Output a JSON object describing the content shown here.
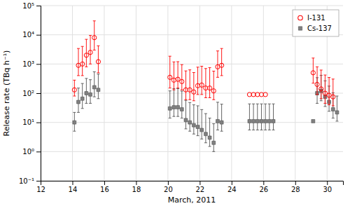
{
  "chart_data": {
    "type": "scatter",
    "xlabel": "March, 2011",
    "ylabel": "Release rate (TBq h⁻¹)",
    "log": "y",
    "grid": true,
    "legend": "upper-right",
    "xlim": [
      12,
      31
    ],
    "ylim": [
      0.1,
      100000
    ],
    "xticks": [
      12,
      14,
      16,
      18,
      20,
      22,
      24,
      26,
      28,
      30
    ],
    "yticks": [
      {
        "value": 0.1,
        "label": "10⁻¹"
      },
      {
        "value": 1,
        "label": "10⁰"
      },
      {
        "value": 10,
        "label": "10¹"
      },
      {
        "value": 100,
        "label": "10²"
      },
      {
        "value": 1000,
        "label": "10³"
      },
      {
        "value": 10000,
        "label": "10⁴"
      },
      {
        "value": 100000,
        "label": "10⁵"
      }
    ],
    "series": [
      {
        "name": "I-131",
        "color": "#FF0000",
        "marker": "open-circle",
        "x": [
          14.125,
          14.375,
          14.625,
          14.875,
          15.125,
          15.375,
          15.625,
          20.125,
          20.375,
          20.625,
          20.875,
          21.125,
          21.375,
          21.625,
          21.875,
          22.125,
          22.375,
          22.625,
          22.875,
          23.125,
          23.375,
          25.125,
          25.375,
          25.625,
          25.875,
          26.125,
          29.125,
          29.375,
          29.625,
          29.875,
          30.125,
          30.375
        ],
        "values": [
          130,
          900,
          1000,
          2000,
          2500,
          8000,
          1200,
          350,
          280,
          300,
          250,
          130,
          130,
          110,
          180,
          190,
          150,
          150,
          120,
          800,
          900,
          90,
          90,
          90,
          90,
          90,
          500,
          200,
          140,
          100,
          85,
          75
        ],
        "error_lo": [
          50,
          500,
          600,
          1200,
          1500,
          5000,
          700,
          200,
          150,
          150,
          120,
          70,
          70,
          55,
          90,
          100,
          80,
          80,
          60,
          450,
          500,
          0,
          0,
          0,
          0,
          0,
          280,
          110,
          75,
          55,
          45,
          38
        ],
        "error_hi": [
          150,
          2500,
          3000,
          5000,
          7000,
          22000,
          3000,
          1500,
          900,
          900,
          700,
          450,
          500,
          400,
          600,
          650,
          550,
          600,
          450,
          2000,
          2500,
          0,
          0,
          0,
          0,
          0,
          1100,
          600,
          480,
          320,
          260,
          230
        ]
      },
      {
        "name": "Cs-137",
        "color": "#808080",
        "marker": "square",
        "x": [
          14.125,
          14.375,
          14.625,
          14.875,
          15.125,
          15.375,
          15.625,
          20.125,
          20.375,
          20.625,
          20.875,
          21.125,
          21.375,
          21.625,
          21.875,
          22.125,
          22.375,
          22.625,
          22.875,
          23.125,
          23.375,
          25.125,
          25.375,
          25.625,
          25.875,
          26.125,
          26.375,
          26.625,
          29.125,
          29.375,
          29.625,
          29.875,
          30.125,
          30.375,
          30.625
        ],
        "values": [
          10,
          50,
          65,
          100,
          90,
          160,
          130,
          30,
          33,
          33,
          28,
          12,
          10,
          8,
          7,
          5.5,
          4,
          3,
          2,
          11,
          10,
          11,
          11,
          11,
          11,
          11,
          11,
          11,
          11,
          100,
          120,
          75,
          50,
          28,
          22
        ],
        "error_lo": [
          5,
          28,
          35,
          55,
          45,
          85,
          65,
          16,
          17,
          17,
          14,
          6,
          5,
          4,
          3.5,
          2.8,
          2,
          1.5,
          1,
          5.5,
          5,
          5.5,
          5.5,
          5.5,
          5.5,
          5.5,
          5.5,
          5.5,
          0,
          55,
          65,
          40,
          26,
          14,
          11
        ],
        "error_hi": [
          12,
          100,
          150,
          220,
          200,
          380,
          320,
          90,
          110,
          110,
          90,
          45,
          38,
          32,
          30,
          22,
          16,
          11,
          7,
          38,
          32,
          32,
          32,
          32,
          32,
          32,
          32,
          32,
          0,
          240,
          290,
          190,
          125,
          75,
          58
        ]
      }
    ]
  }
}
